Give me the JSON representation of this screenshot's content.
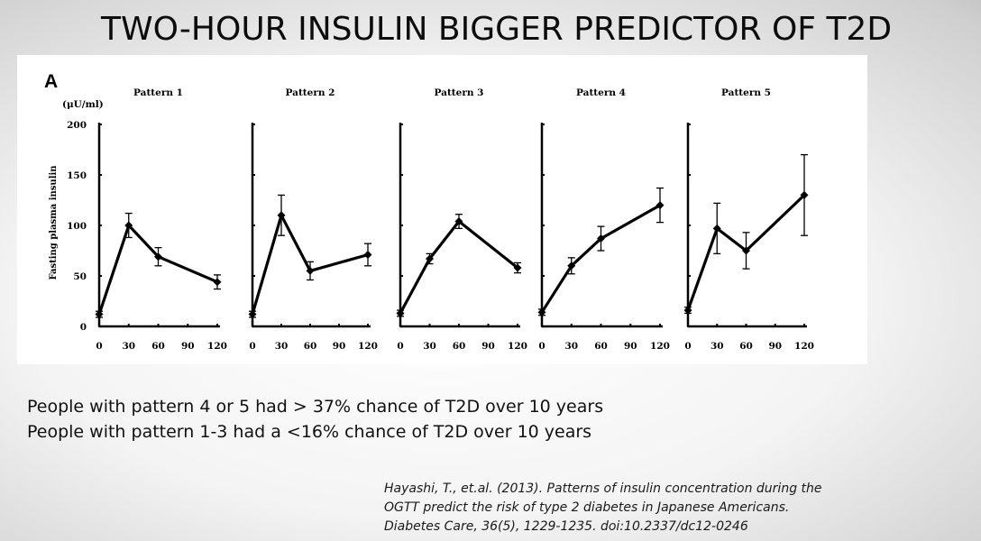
{
  "slide": {
    "title": "TWO-HOUR INSULIN BIGGER PREDICTOR OF T2D",
    "bullets": [
      "People with pattern 4 or 5 had > 37% chance of T2D over 10 years",
      "People with pattern 1-3 had a <16% chance of T2D over 10 years"
    ],
    "citation": [
      "Hayashi, T., et.al. (2013). Patterns of insulin concentration during the",
      "OGTT predict the risk of type 2 diabetes in Japanese Americans.",
      "Diabetes Care, 36(5), 1229-1235. doi:10.2337/dc12-0246"
    ]
  },
  "figure": {
    "panel_letter": "A",
    "unit_label": "(μU/ml)",
    "ylabel": "Fasting plasma insulin"
  },
  "chart_data": {
    "type": "line",
    "ylim": [
      0,
      200
    ],
    "yticks": [
      0,
      50,
      100,
      150,
      200
    ],
    "x": [
      0,
      30,
      60,
      90,
      120
    ],
    "series": [
      {
        "name": "Pattern 1",
        "points": [
          [
            0,
            12
          ],
          [
            30,
            100
          ],
          [
            60,
            69
          ],
          [
            120,
            44
          ]
        ],
        "err": [
          3,
          12,
          9,
          7
        ]
      },
      {
        "name": "Pattern 2",
        "points": [
          [
            0,
            12
          ],
          [
            30,
            110
          ],
          [
            60,
            55
          ],
          [
            120,
            71
          ]
        ],
        "err": [
          3,
          20,
          9,
          11
        ]
      },
      {
        "name": "Pattern 3",
        "points": [
          [
            0,
            13
          ],
          [
            30,
            67
          ],
          [
            60,
            104
          ],
          [
            120,
            58
          ]
        ],
        "err": [
          3,
          5,
          7,
          5
        ]
      },
      {
        "name": "Pattern 4",
        "points": [
          [
            0,
            14
          ],
          [
            30,
            60
          ],
          [
            60,
            87
          ],
          [
            120,
            120
          ]
        ],
        "err": [
          3,
          8,
          12,
          17
        ]
      },
      {
        "name": "Pattern 5",
        "points": [
          [
            0,
            16
          ],
          [
            30,
            97
          ],
          [
            60,
            75
          ],
          [
            120,
            130
          ]
        ],
        "err": [
          3,
          25,
          18,
          40
        ]
      }
    ]
  },
  "style": {
    "line_color": "#000000",
    "panel_background": "#ffffff"
  }
}
